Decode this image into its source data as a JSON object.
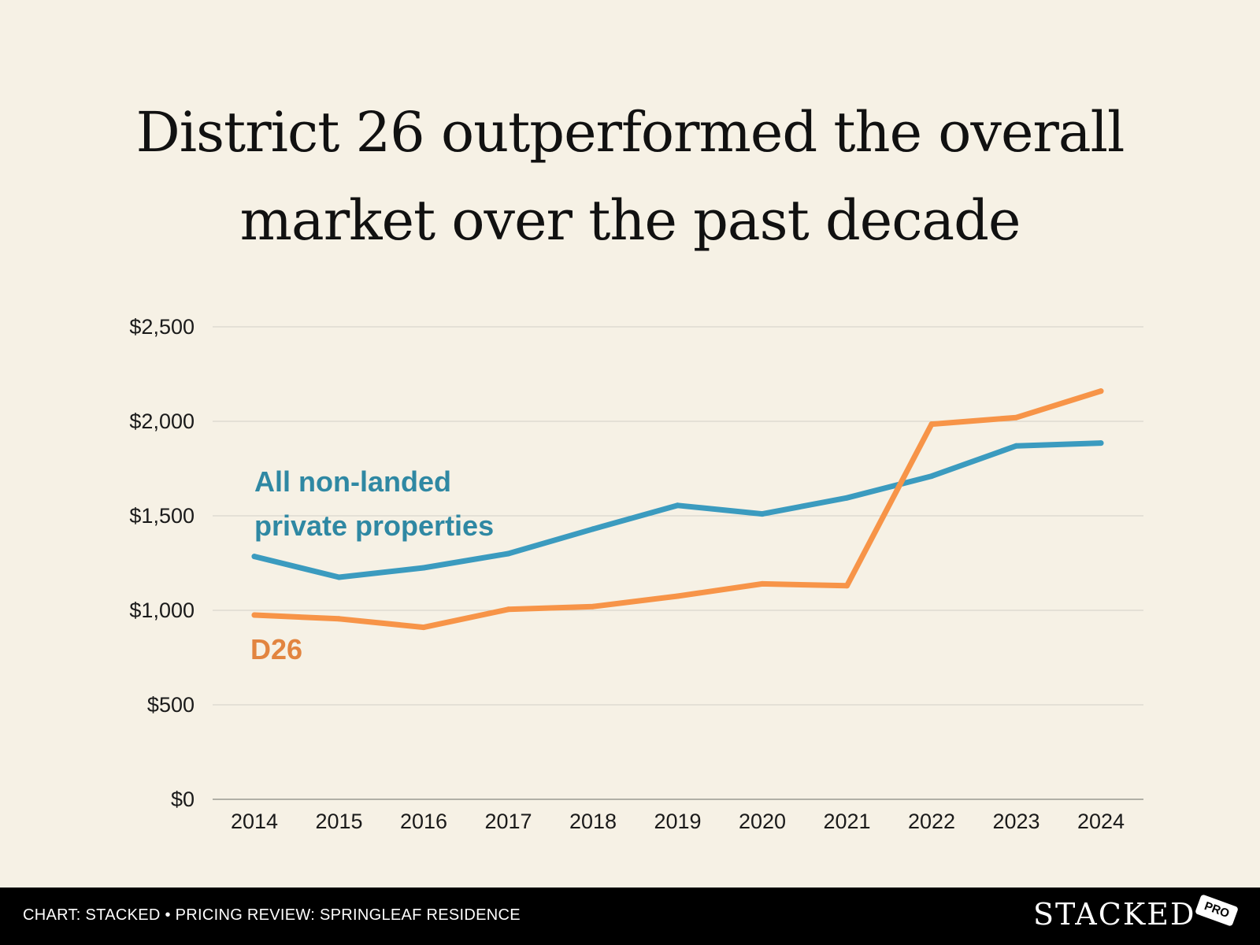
{
  "chart_data": {
    "type": "line",
    "title": [
      "District 26 outperformed the overall",
      "market over the past decade"
    ],
    "categories": [
      "2014",
      "2015",
      "2016",
      "2017",
      "2018",
      "2019",
      "2020",
      "2021",
      "2022",
      "2023",
      "2024"
    ],
    "series": [
      {
        "name": "All non-landed private properties",
        "label_lines": [
          "All non-landed",
          "private properties"
        ],
        "color": "#3b9bbf",
        "label_color": "#2f88a3",
        "values": [
          1285,
          1175,
          1225,
          1300,
          1430,
          1555,
          1510,
          1595,
          1710,
          1870,
          1885
        ]
      },
      {
        "name": "D26",
        "label_lines": [
          "D26"
        ],
        "color": "#f79448",
        "label_color": "#e2843f",
        "values": [
          975,
          955,
          910,
          1005,
          1020,
          1075,
          1140,
          1130,
          1985,
          2020,
          2160
        ]
      }
    ],
    "y_ticks": [
      0,
      500,
      1000,
      1500,
      2000,
      2500
    ],
    "y_tick_labels": [
      "$0",
      "$500",
      "$1,000",
      "$1,500",
      "$2,000",
      "$2,500"
    ],
    "ylim": [
      0,
      2500
    ],
    "xlabel": "",
    "ylabel": "",
    "grid": true
  },
  "footer": {
    "credit": "CHART: STACKED • PRICING REVIEW: SPRINGLEAF RESIDENCE",
    "logo": "STACKED",
    "badge": "PRO"
  }
}
